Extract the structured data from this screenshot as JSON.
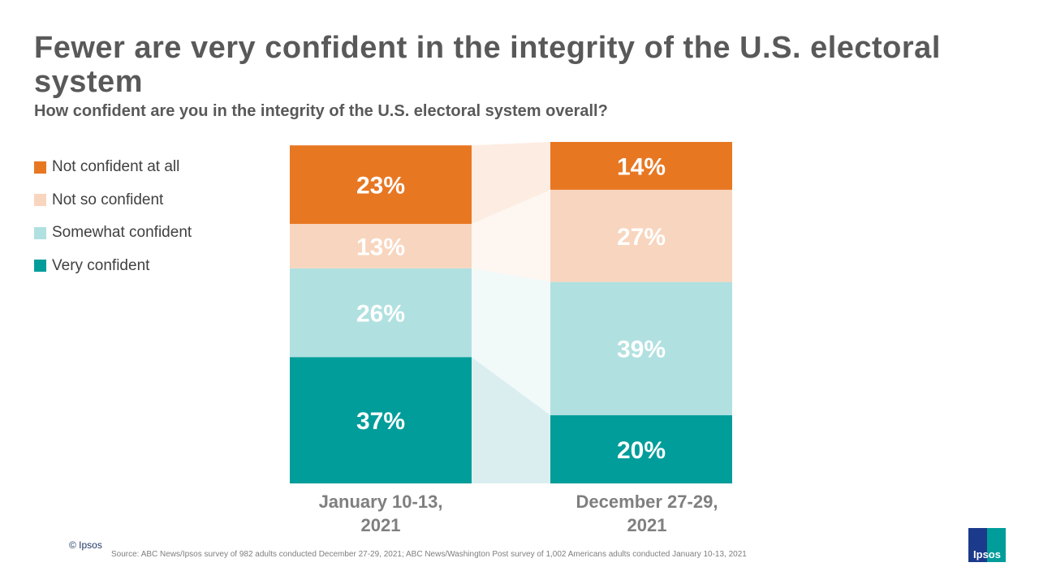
{
  "title": "Fewer are very confident in the integrity of the U.S. electoral system",
  "subtitle": "How confident are you in the integrity of the U.S. electoral system overall?",
  "chart_data": {
    "type": "bar",
    "stacked": true,
    "categories": [
      "January 10-13, 2021",
      "December 27-29, 2021"
    ],
    "series": [
      {
        "name": "Very confident",
        "values": [
          37,
          20
        ],
        "labels": [
          "37%",
          "20%"
        ],
        "color": "#009d9a",
        "link_color": "#daeeef"
      },
      {
        "name": "Somewhat confident",
        "values": [
          26,
          39
        ],
        "labels": [
          "26%",
          "39%"
        ],
        "color": "#b1e0e0",
        "link_color": "#f2f9f9"
      },
      {
        "name": "Not so confident",
        "values": [
          13,
          27
        ],
        "labels": [
          "13%",
          "27%"
        ],
        "color": "#f8d5be",
        "link_color": "#fdf6f1"
      },
      {
        "name": "Not confident at all",
        "values": [
          23,
          14
        ],
        "labels": [
          "23%",
          "14%"
        ],
        "color": "#e87722",
        "link_color": "#fdece1"
      }
    ],
    "legend_position": "left",
    "legend_order": [
      "Not confident at all",
      "Not so confident",
      "Somewhat confident",
      "Very confident"
    ],
    "grid": false
  },
  "xlabels": {
    "jan": "January 10-13,\n2021",
    "dec": "December 27-29,\n2021"
  },
  "footer": {
    "copyright": "© Ipsos",
    "source": "Source: ABC News/Ipsos survey of 982 adults conducted December 27-29, 2021; ABC News/Washington Post survey of 1,002 Americans adults conducted January 10-13, 2021",
    "logo": "Ipsos"
  }
}
